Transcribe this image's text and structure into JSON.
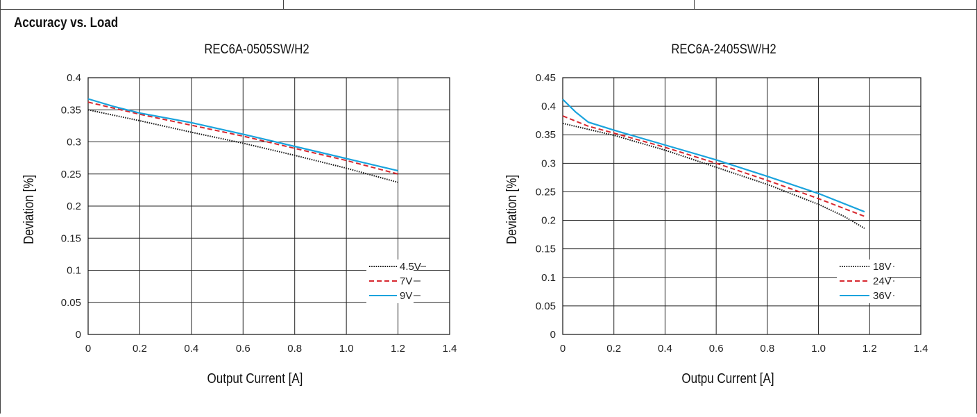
{
  "page": {
    "heading": "Accuracy vs. Load"
  },
  "chart_data": [
    {
      "type": "line",
      "title": "REC6A-0505SW/H2",
      "xlabel": "Output Current [A]",
      "ylabel": "Deviation [%]",
      "xlim": [
        0,
        1.4
      ],
      "ylim": [
        0,
        0.4
      ],
      "xticks": [
        0,
        0.2,
        0.4,
        0.6,
        0.8,
        1.0,
        1.2,
        1.4
      ],
      "xtick_labels": [
        "0",
        "0.2",
        "0.4",
        "0.6",
        "0.8",
        "1.0",
        "1.2",
        "1.4"
      ],
      "yticks": [
        0,
        0.05,
        0.1,
        0.15,
        0.2,
        0.25,
        0.3,
        0.35,
        0.4
      ],
      "ytick_labels": [
        "0",
        "0.05",
        "0.1",
        "0.15",
        "0.2",
        "0.25",
        "0.3",
        "0.35",
        "0.4"
      ],
      "grid": true,
      "legend_position": "bottom-right",
      "series": [
        {
          "name": "4.5V",
          "color": "#1a1a1a",
          "style": "dotted",
          "x": [
            0,
            0.2,
            0.4,
            0.6,
            0.8,
            1.0,
            1.2
          ],
          "y": [
            0.35,
            0.333,
            0.315,
            0.298,
            0.279,
            0.259,
            0.237
          ]
        },
        {
          "name": "7V",
          "color": "#d7282f",
          "style": "dashed",
          "x": [
            0,
            0.2,
            0.4,
            0.6,
            0.8,
            1.0,
            1.2
          ],
          "y": [
            0.362,
            0.343,
            0.326,
            0.309,
            0.29,
            0.271,
            0.25
          ]
        },
        {
          "name": "9V",
          "color": "#1aa3dd",
          "style": "solid",
          "x": [
            0,
            0.1,
            0.2,
            0.4,
            0.6,
            0.8,
            1.0,
            1.2
          ],
          "y": [
            0.367,
            0.355,
            0.345,
            0.33,
            0.312,
            0.293,
            0.274,
            0.255
          ]
        }
      ]
    },
    {
      "type": "line",
      "title": "REC6A-2405SW/H2",
      "xlabel": "Outpu Current [A]",
      "ylabel": "Deviation [%]",
      "xlim": [
        0,
        1.4
      ],
      "ylim": [
        0,
        0.45
      ],
      "xticks": [
        0,
        0.2,
        0.4,
        0.6,
        0.8,
        1.0,
        1.2,
        1.4
      ],
      "xtick_labels": [
        "0",
        "0.2",
        "0.4",
        "0.6",
        "0.8",
        "1.0",
        "1.2",
        "1.4"
      ],
      "yticks": [
        0,
        0.05,
        0.1,
        0.15,
        0.2,
        0.25,
        0.3,
        0.35,
        0.4,
        0.45
      ],
      "ytick_labels": [
        "0",
        "0.05",
        "0.1",
        "0.15",
        "0.2",
        "0.25",
        "0.3",
        "0.35",
        "0.4",
        "0.45"
      ],
      "grid": true,
      "legend_position": "bottom-right",
      "series": [
        {
          "name": "18V",
          "color": "#1a1a1a",
          "style": "dotted",
          "x": [
            0,
            0.2,
            0.4,
            0.6,
            0.8,
            1.0,
            1.1,
            1.18
          ],
          "y": [
            0.37,
            0.349,
            0.323,
            0.293,
            0.263,
            0.228,
            0.207,
            0.186
          ]
        },
        {
          "name": "24V",
          "color": "#d7282f",
          "style": "dashed",
          "x": [
            0,
            0.1,
            0.2,
            0.4,
            0.6,
            0.8,
            1.0,
            1.18
          ],
          "y": [
            0.383,
            0.365,
            0.353,
            0.328,
            0.3,
            0.27,
            0.238,
            0.207
          ]
        },
        {
          "name": "36V",
          "color": "#1aa3dd",
          "style": "solid",
          "x": [
            0,
            0.05,
            0.1,
            0.2,
            0.4,
            0.6,
            0.8,
            1.0,
            1.18
          ],
          "y": [
            0.412,
            0.39,
            0.372,
            0.358,
            0.332,
            0.306,
            0.277,
            0.247,
            0.215
          ]
        }
      ]
    }
  ]
}
